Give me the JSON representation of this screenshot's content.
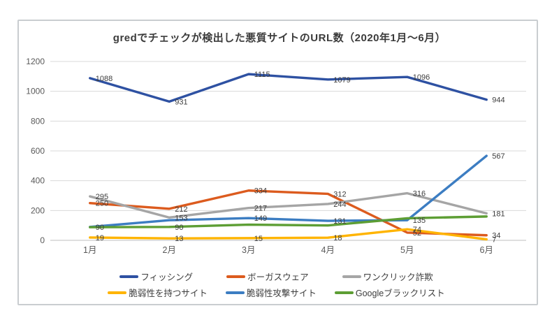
{
  "chart_data": {
    "type": "line",
    "title": "gredでチェックが検出した悪質サイトのURL数（2020年1月～6月）",
    "categories": [
      "1月",
      "2月",
      "3月",
      "4月",
      "5月",
      "6月"
    ],
    "yticks": [
      0,
      200,
      400,
      600,
      800,
      1000,
      1200
    ],
    "ylim": [
      0,
      1200
    ],
    "grid": true,
    "legend_position": "bottom",
    "gridline_color": "#d9d9d9",
    "axis_line_color": "#bfbfbf",
    "tick_color": "#595959",
    "data_label_color": "#3d3d3d",
    "series": [
      {
        "name": "フィッシング",
        "color": "#2e51a2",
        "values": [
          1088,
          931,
          1115,
          1079,
          1096,
          944
        ],
        "label_mask": [
          true,
          true,
          true,
          true,
          true,
          true
        ]
      },
      {
        "name": "ボーガスウェア",
        "color": "#dc5b1e",
        "values": [
          250,
          212,
          334,
          312,
          52,
          34
        ],
        "label_mask": [
          true,
          true,
          true,
          true,
          true,
          true
        ]
      },
      {
        "name": "ワンクリック詐欺",
        "color": "#a5a5a5",
        "values": [
          295,
          153,
          217,
          244,
          316,
          181
        ],
        "label_mask": [
          true,
          true,
          true,
          true,
          true,
          true
        ]
      },
      {
        "name": "脆弱性を持つサイト",
        "color": "#ffb400",
        "values": [
          19,
          13,
          15,
          18,
          74,
          7
        ],
        "label_mask": [
          true,
          true,
          true,
          true,
          true,
          true
        ]
      },
      {
        "name": "脆弱性攻撃サイト",
        "color": "#3c7dc2",
        "values": [
          90,
          135,
          149,
          131,
          135,
          567
        ],
        "label_mask": [
          true,
          false,
          true,
          true,
          true,
          true
        ]
      },
      {
        "name": "Googleブラックリスト",
        "color": "#5d9e34",
        "values": [
          88,
          90,
          105,
          100,
          148,
          160
        ],
        "label_mask": [
          false,
          true,
          false,
          false,
          false,
          false
        ]
      }
    ]
  }
}
